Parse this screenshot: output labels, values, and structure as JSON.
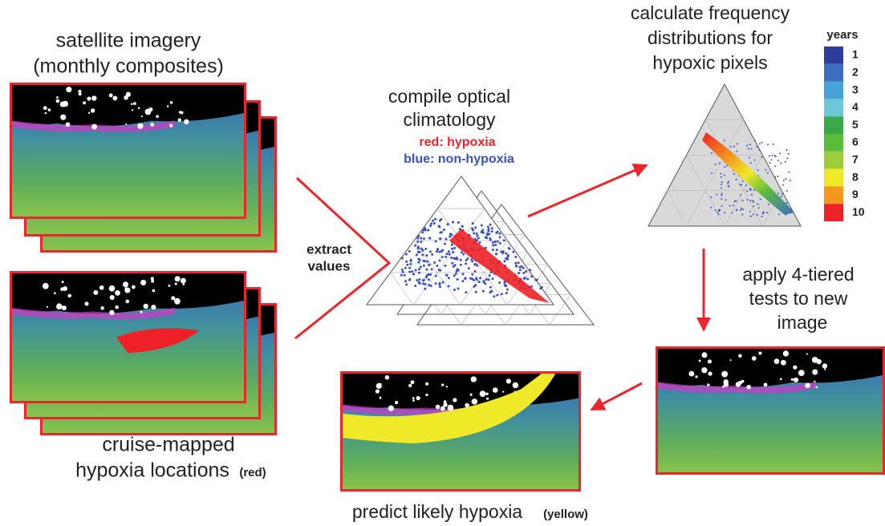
{
  "satellite": {
    "title": [
      "satellite imagery",
      "(monthly composites)"
    ]
  },
  "cruise": {
    "title": "cruise-mapped",
    "subtitle": "hypoxia locations",
    "note": "(red)"
  },
  "extract": [
    "extract",
    "values"
  ],
  "compile": {
    "title": [
      "compile optical",
      "climatology"
    ],
    "red": "red: hypoxia",
    "blue": "blue: non-hypoxia"
  },
  "frequency": {
    "title": [
      "calculate frequency",
      "distributions for",
      "hypoxic pixels"
    ]
  },
  "legend": {
    "title": "years",
    "items": [
      {
        "label": "1",
        "color": "#2c3e9a"
      },
      {
        "label": "2",
        "color": "#3d6cc0"
      },
      {
        "label": "3",
        "color": "#45a3d6"
      },
      {
        "label": "4",
        "color": "#6cc8d8"
      },
      {
        "label": "5",
        "color": "#39a84a"
      },
      {
        "label": "6",
        "color": "#5dbb3c"
      },
      {
        "label": "7",
        "color": "#9dcc3a"
      },
      {
        "label": "8",
        "color": "#f0e92a"
      },
      {
        "label": "9",
        "color": "#f39a1e"
      },
      {
        "label": "10",
        "color": "#ec2227"
      }
    ]
  },
  "apply": {
    "title": [
      "apply 4-tiered",
      "tests to new",
      "image"
    ]
  },
  "predict": {
    "title": "predict likely hypoxia",
    "note": "(yellow)"
  }
}
